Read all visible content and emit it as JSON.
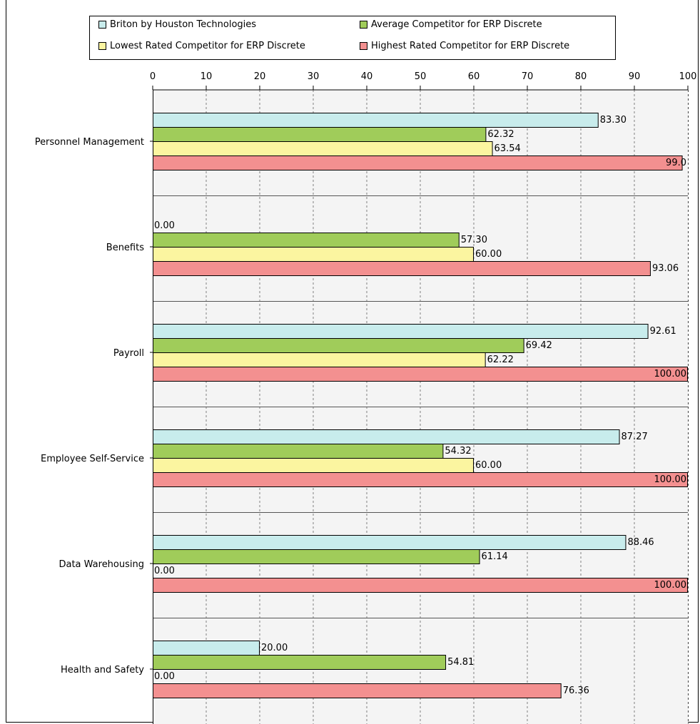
{
  "chart_data": {
    "type": "bar",
    "orientation": "horizontal",
    "categories": [
      "Personnel Management",
      "Benefits",
      "Payroll",
      "Employee Self-Service",
      "Data Warehousing",
      "Health and Safety"
    ],
    "series": [
      {
        "name": "Briton by  Houston Technologies",
        "color": "#c8ecec",
        "values": [
          83.3,
          0.0,
          92.61,
          87.27,
          88.46,
          20.0
        ],
        "labels": [
          "83.30",
          "0.00",
          "92.61",
          "87.27",
          "88.46",
          "20.00"
        ]
      },
      {
        "name": "Average Competitor for ERP Discrete",
        "color": "#a0cc5a",
        "values": [
          62.32,
          57.3,
          69.42,
          54.32,
          61.14,
          54.81
        ],
        "labels": [
          "62.32",
          "57.30",
          "69.42",
          "54.32",
          "61.14",
          "54.81"
        ]
      },
      {
        "name": "Lowest Rated Competitor for ERP Discrete",
        "color": "#fbf5a0",
        "values": [
          63.54,
          60.0,
          62.22,
          60.0,
          0.0,
          0.0
        ],
        "labels": [
          "63.54",
          "60.00",
          "62.22",
          "60.00",
          "0.00",
          "0.00"
        ]
      },
      {
        "name": "Highest Rated Competitor for ERP Discrete",
        "color": "#f39090",
        "values": [
          99.01,
          93.06,
          100.0,
          100.0,
          100.0,
          76.36
        ],
        "labels": [
          "99.0",
          "93.06",
          "100.00",
          "100.00",
          "100.00",
          "76.36"
        ]
      }
    ],
    "xlim": [
      0,
      100
    ],
    "xticks": [
      0,
      10,
      20,
      30,
      40,
      50,
      60,
      70,
      80,
      90,
      100
    ],
    "xaxis_position": "top",
    "grid": true,
    "legend_position": "top",
    "plot_background": "#f4f4f4"
  }
}
